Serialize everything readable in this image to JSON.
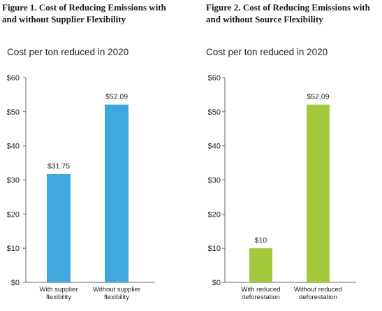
{
  "chart_data": [
    {
      "type": "bar",
      "figure_title": "Figure 1. Cost of Reducing Emissions with\nand without Supplier Flexibility",
      "title": "Cost per ton reduced in 2020",
      "categories": [
        "With supplier\nflexibility",
        "Without supplier\nflexibility"
      ],
      "values": [
        31.75,
        52.09
      ],
      "data_labels": [
        "$31.75",
        "$52.09"
      ],
      "ylim": [
        0,
        60
      ],
      "yticks": [
        0,
        10,
        20,
        30,
        40,
        50,
        60
      ],
      "ytick_labels": [
        "$0",
        "$10",
        "$20",
        "$30",
        "$40",
        "$50",
        "$60"
      ],
      "xlabel": "",
      "ylabel": "",
      "bar_color": "#3FA8DC",
      "grid": false,
      "legend": "none"
    },
    {
      "type": "bar",
      "figure_title": "Figure 2. Cost of Reducing Emissions with\nand without Source Flexibility",
      "title": "Cost per ton reduced in 2020",
      "categories": [
        "With reduced\ndeforestation",
        "Without reduced\ndeforestation"
      ],
      "values": [
        10,
        52.09
      ],
      "data_labels": [
        "$10",
        "$52.09"
      ],
      "ylim": [
        0,
        60
      ],
      "yticks": [
        0,
        10,
        20,
        30,
        40,
        50,
        60
      ],
      "ytick_labels": [
        "$0",
        "$10",
        "$20",
        "$30",
        "$40",
        "$50",
        "$60"
      ],
      "xlabel": "",
      "ylabel": "",
      "bar_color": "#A4C93C",
      "grid": false,
      "legend": "none"
    }
  ]
}
